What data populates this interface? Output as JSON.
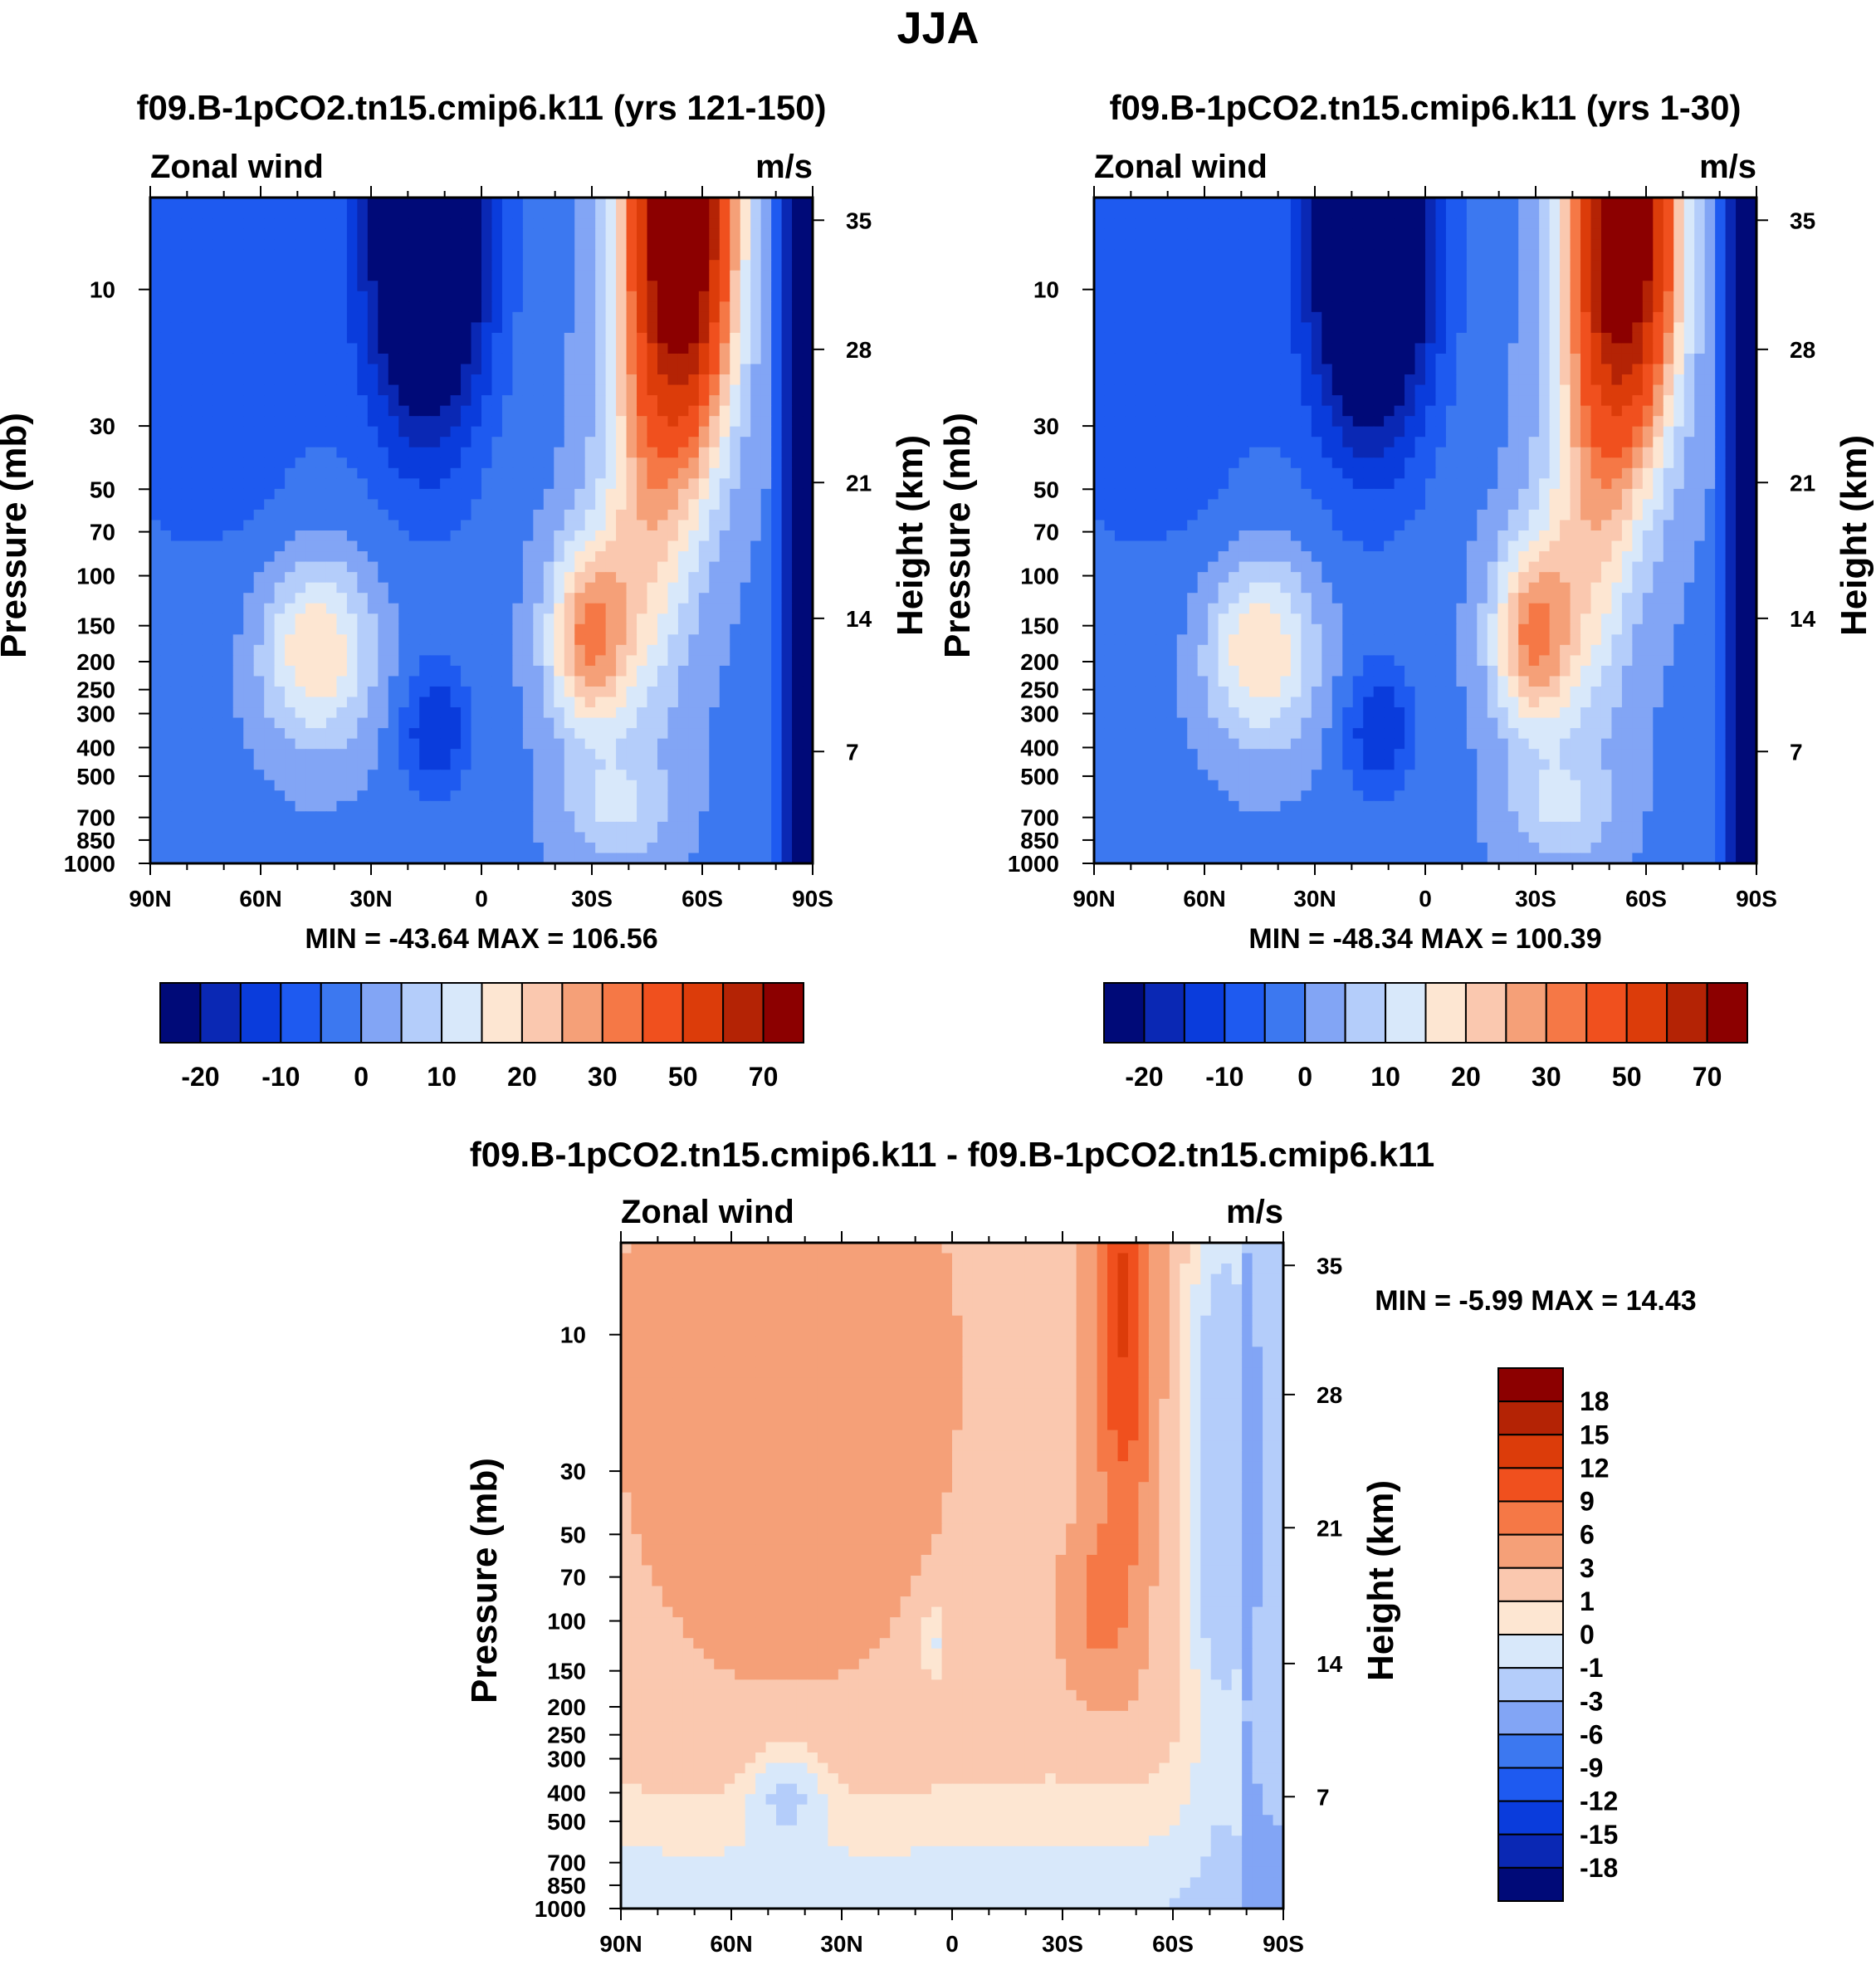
{
  "figure": {
    "main_title": "JJA"
  },
  "chart_data": [
    {
      "type": "heatmap",
      "title": "f09.B-1pCO2.tn15.cmip6.k11 (yrs 121-150)",
      "left_string": "Zonal wind",
      "right_string": "m/s",
      "xlabel": "",
      "ylabel": "Pressure (mb)",
      "y2label": "Height (km)",
      "x_ticks": [
        "90N",
        "60N",
        "30N",
        "0",
        "30S",
        "60S",
        "90S"
      ],
      "y_ticks": [
        "10",
        "30",
        "50",
        "70",
        "100",
        "150",
        "200",
        "250",
        "300",
        "400",
        "500",
        "700",
        "850",
        "1000"
      ],
      "y2_ticks": [
        "35",
        "28",
        "21",
        "14",
        "7"
      ],
      "min_max_text": "MIN = -43.64  MAX = 106.56",
      "min": -43.64,
      "max": 106.56,
      "field": "full",
      "colorbar": {
        "orientation": "horizontal",
        "labels": [
          "-20",
          "-10",
          "0",
          "10",
          "20",
          "30",
          "50",
          "70"
        ]
      }
    },
    {
      "type": "heatmap",
      "title": "f09.B-1pCO2.tn15.cmip6.k11 (yrs 1-30)",
      "left_string": "Zonal wind",
      "right_string": "m/s",
      "xlabel": "",
      "ylabel": "Pressure (mb)",
      "y2label": "Height (km)",
      "x_ticks": [
        "90N",
        "60N",
        "30N",
        "0",
        "30S",
        "60S",
        "90S"
      ],
      "y_ticks": [
        "10",
        "30",
        "50",
        "70",
        "100",
        "150",
        "200",
        "250",
        "300",
        "400",
        "500",
        "700",
        "850",
        "1000"
      ],
      "y2_ticks": [
        "35",
        "28",
        "21",
        "14",
        "7"
      ],
      "min_max_text": "MIN = -48.34  MAX = 100.39",
      "min": -48.34,
      "max": 100.39,
      "field": "full",
      "colorbar": {
        "orientation": "horizontal",
        "labels": [
          "-20",
          "-10",
          "0",
          "10",
          "20",
          "30",
          "50",
          "70"
        ]
      }
    },
    {
      "type": "heatmap",
      "title": "f09.B-1pCO2.tn15.cmip6.k11 - f09.B-1pCO2.tn15.cmip6.k11",
      "left_string": "Zonal wind",
      "right_string": "m/s",
      "xlabel": "",
      "ylabel": "Pressure (mb)",
      "y2label": "Height (km)",
      "x_ticks": [
        "90N",
        "60N",
        "30N",
        "0",
        "30S",
        "60S",
        "90S"
      ],
      "y_ticks": [
        "10",
        "30",
        "50",
        "70",
        "100",
        "150",
        "200",
        "250",
        "300",
        "400",
        "500",
        "700",
        "850",
        "1000"
      ],
      "y2_ticks": [
        "35",
        "28",
        "21",
        "14",
        "7"
      ],
      "min_max_text": "MIN =  -5.99  MAX =  14.43",
      "min": -5.99,
      "max": 14.43,
      "field": "diff",
      "colorbar": {
        "orientation": "vertical",
        "labels": [
          "18",
          "15",
          "12",
          "9",
          "6",
          "3",
          "1",
          "0",
          "-1",
          "-3",
          "-6",
          "-9",
          "-12",
          "-15",
          "-18"
        ]
      }
    }
  ],
  "palettes": {
    "full": [
      "#000a78",
      "#0a28b4",
      "#0a3cdc",
      "#1e5af0",
      "#3c78f0",
      "#82a5f5",
      "#b4cdfa",
      "#d8e8fa",
      "#fde6d2",
      "#fac8af",
      "#f5a078",
      "#f57846",
      "#f0501e",
      "#dc3c0a",
      "#b42305",
      "#8c0000"
    ],
    "diff": [
      "#000a78",
      "#0a28b4",
      "#0a3cdc",
      "#1e5af0",
      "#3c78f0",
      "#82a5f5",
      "#b4cdfa",
      "#d8e8fa",
      "#fde6d2",
      "#fac8af",
      "#f5a078",
      "#f57846",
      "#f0501e",
      "#dc3c0a",
      "#b42305",
      "#8c0000"
    ]
  }
}
